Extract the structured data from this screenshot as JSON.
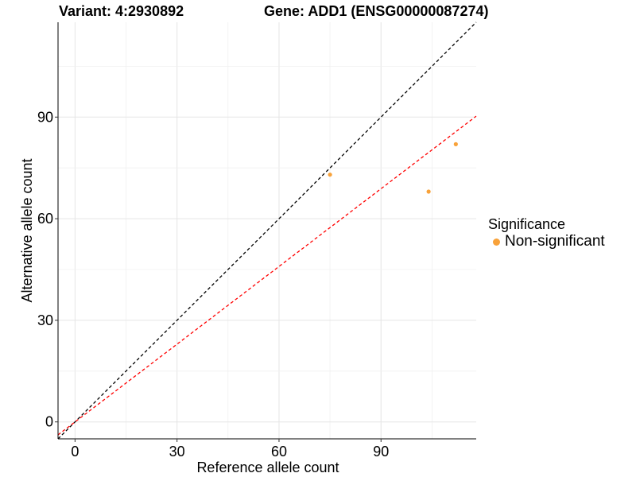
{
  "chart_data": {
    "type": "scatter",
    "title_left": "Variant: 4:2930892",
    "title_right": "Gene: ADD1 (ENSG00000087274)",
    "xlabel": "Reference allele count",
    "ylabel": "Alternative allele count",
    "xlim": [
      -5,
      118
    ],
    "ylim": [
      -5,
      118
    ],
    "x_ticks": [
      0,
      30,
      60,
      90
    ],
    "y_ticks": [
      0,
      30,
      60,
      90
    ],
    "grid": true,
    "legend_position": "right",
    "legend_title": "Significance",
    "series": [
      {
        "name": "Non-significant",
        "color": "#F8A23A",
        "points": [
          {
            "x": 75,
            "y": 73
          },
          {
            "x": 104,
            "y": 68
          },
          {
            "x": 112,
            "y": 82
          }
        ]
      }
    ],
    "reference_lines": [
      {
        "label": "y = x",
        "slope": 1.0,
        "intercept": 0,
        "color": "#000000",
        "style": "dashed"
      },
      {
        "label": "fitted",
        "slope": 0.765,
        "intercept": 0,
        "color": "#ff0000",
        "style": "dashed"
      }
    ]
  }
}
